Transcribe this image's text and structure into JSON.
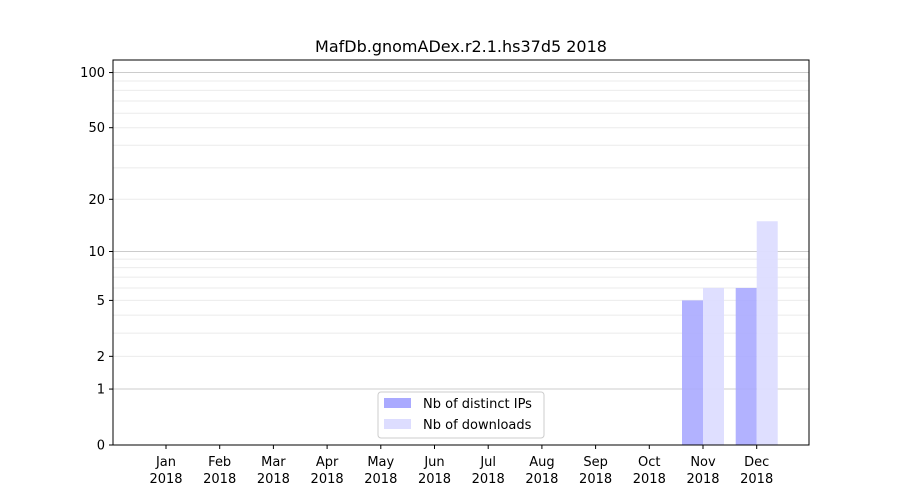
{
  "chart_data": {
    "type": "bar",
    "title": "MafDb.gnomADex.r2.1.hs37d5 2018",
    "xlabel": "",
    "ylabel": "",
    "yscale": "symlog (log10(1+y))",
    "categories": [
      [
        "Jan",
        "2018"
      ],
      [
        "Feb",
        "2018"
      ],
      [
        "Mar",
        "2018"
      ],
      [
        "Apr",
        "2018"
      ],
      [
        "May",
        "2018"
      ],
      [
        "Jun",
        "2018"
      ],
      [
        "Jul",
        "2018"
      ],
      [
        "Aug",
        "2018"
      ],
      [
        "Sep",
        "2018"
      ],
      [
        "Oct",
        "2018"
      ],
      [
        "Nov",
        "2018"
      ],
      [
        "Dec",
        "2018"
      ]
    ],
    "series": [
      {
        "name": "Nb of distinct IPs",
        "color": "#aaaaff",
        "values": [
          0,
          0,
          0,
          0,
          0,
          0,
          0,
          0,
          0,
          0,
          5,
          6
        ]
      },
      {
        "name": "Nb of downloads",
        "color": "#ddddff",
        "values": [
          0,
          0,
          0,
          0,
          0,
          0,
          0,
          0,
          0,
          0,
          6,
          15
        ]
      }
    ],
    "yticks": [
      0,
      1,
      2,
      5,
      10,
      20,
      50,
      100
    ],
    "ytick_labels": [
      "0",
      "1",
      "2",
      "5",
      "10",
      "20",
      "50",
      "100"
    ],
    "ylim": [
      0,
      117
    ],
    "grid": true,
    "legend_position": "lower-center"
  }
}
